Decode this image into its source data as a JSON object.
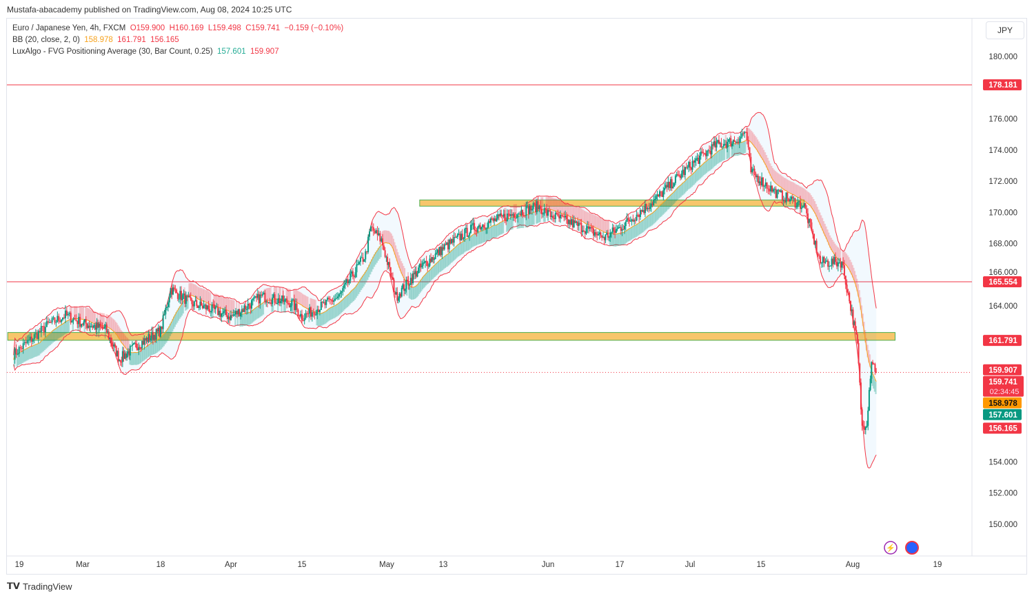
{
  "publisher": "Mustafa-abacademy published on TradingView.com, Aug 08, 2024 10:25 UTC",
  "legend": {
    "symbol": "Euro / Japanese Yen, 4h, FXCM",
    "open": "O159.900",
    "high": "H160.169",
    "low": "L159.498",
    "close": "C159.741",
    "change": "−0.159 (−0.10%)",
    "bb_label": "BB (20, close, 2, 0)",
    "bb_basis": "158.978",
    "bb_upper": "161.791",
    "bb_lower": "156.165",
    "fvg_label": "LuxAlgo - FVG Positioning Average (30, Bar Count, 0.25)",
    "fvg_bull": "157.601",
    "fvg_bear": "159.907"
  },
  "currency": "JPY",
  "brand": "TradingView",
  "colors": {
    "up": "#22ab94",
    "down": "#f23645",
    "bb": "#f23645",
    "basis": "#f7a21b",
    "zone": "#f7c66b"
  },
  "chart_data": {
    "type": "candlestick",
    "title": "Euro / Japanese Yen, 4h, FXCM",
    "ylim": [
      148.5,
      182
    ],
    "y_ticks": [
      180,
      178,
      176,
      174,
      172,
      170,
      168,
      166,
      164,
      162,
      160,
      158,
      156,
      154,
      152,
      150
    ],
    "y_tick_labels": [
      "180.000",
      "",
      "176.000",
      "174.000",
      "172.000",
      "170.000",
      "168.000",
      "166.000",
      "164.000",
      "",
      "",
      "",
      "",
      "154.000",
      "152.000",
      "150.000"
    ],
    "x_ticks": [
      {
        "day": 50,
        "label": "19"
      },
      {
        "day": 61,
        "label": "Mar"
      },
      {
        "day": 78,
        "label": "18"
      },
      {
        "day": 92,
        "label": "Apr"
      },
      {
        "day": 106,
        "label": "15"
      },
      {
        "day": 122,
        "label": "May"
      },
      {
        "day": 134,
        "label": "13"
      },
      {
        "day": 155,
        "label": "Jun"
      },
      {
        "day": 169,
        "label": "17"
      },
      {
        "day": 183,
        "label": "Jul"
      },
      {
        "day": 197,
        "label": "15"
      },
      {
        "day": 214,
        "label": "Aug"
      },
      {
        "day": 232,
        "label": "19"
      }
    ],
    "path": [
      [
        49,
        160.9
      ],
      [
        55,
        162.8
      ],
      [
        58,
        163.4
      ],
      [
        61,
        162.9
      ],
      [
        66,
        162.5
      ],
      [
        69,
        160.6
      ],
      [
        73,
        161.5
      ],
      [
        78,
        162.4
      ],
      [
        80,
        165.1
      ],
      [
        84,
        164.2
      ],
      [
        88,
        163.8
      ],
      [
        92,
        163.3
      ],
      [
        98,
        164.6
      ],
      [
        104,
        164.2
      ],
      [
        106,
        163.3
      ],
      [
        113,
        164.6
      ],
      [
        118,
        167.3
      ],
      [
        119,
        169.0
      ],
      [
        121,
        168.2
      ],
      [
        124,
        164.6
      ],
      [
        129,
        166.4
      ],
      [
        134,
        167.7
      ],
      [
        140,
        169.0
      ],
      [
        148,
        169.9
      ],
      [
        153,
        170.4
      ],
      [
        155,
        169.9
      ],
      [
        162,
        169.0
      ],
      [
        166,
        168.4
      ],
      [
        169,
        169.0
      ],
      [
        176,
        170.8
      ],
      [
        183,
        173.0
      ],
      [
        188,
        174.3
      ],
      [
        192,
        174.6
      ],
      [
        194,
        175.2
      ],
      [
        195,
        172.6
      ],
      [
        200,
        171.2
      ],
      [
        205,
        170.4
      ],
      [
        208,
        166.8
      ],
      [
        212,
        166.8
      ],
      [
        215,
        161.5
      ],
      [
        216,
        156.2
      ],
      [
        217,
        156.6
      ],
      [
        218,
        160.6
      ],
      [
        219,
        159.741
      ]
    ],
    "horizontal_lines": [
      {
        "price": 178.181,
        "label": "178.181"
      },
      {
        "price": 165.554,
        "label": "165.554"
      }
    ],
    "zones": [
      {
        "from_day": 129,
        "to_day": 205,
        "low": 170.4,
        "high": 170.8
      },
      {
        "from_day": 48,
        "to_day": 223,
        "low": 161.8,
        "high": 162.3
      }
    ],
    "price_labels": [
      {
        "price": 161.791,
        "text": "161.791",
        "color": "#f23645"
      },
      {
        "price": 159.907,
        "text": "159.907",
        "color": "#f23645"
      },
      {
        "price": 159.741,
        "text": "159.741",
        "sub": "02:34:45",
        "color": "#f23645"
      },
      {
        "price": 158.978,
        "text": "158.978",
        "color": "#ff9800",
        "dark": true
      },
      {
        "price": 157.601,
        "text": "157.601",
        "color": "#089981"
      },
      {
        "price": 156.165,
        "text": "156.165",
        "color": "#f23645"
      }
    ]
  }
}
